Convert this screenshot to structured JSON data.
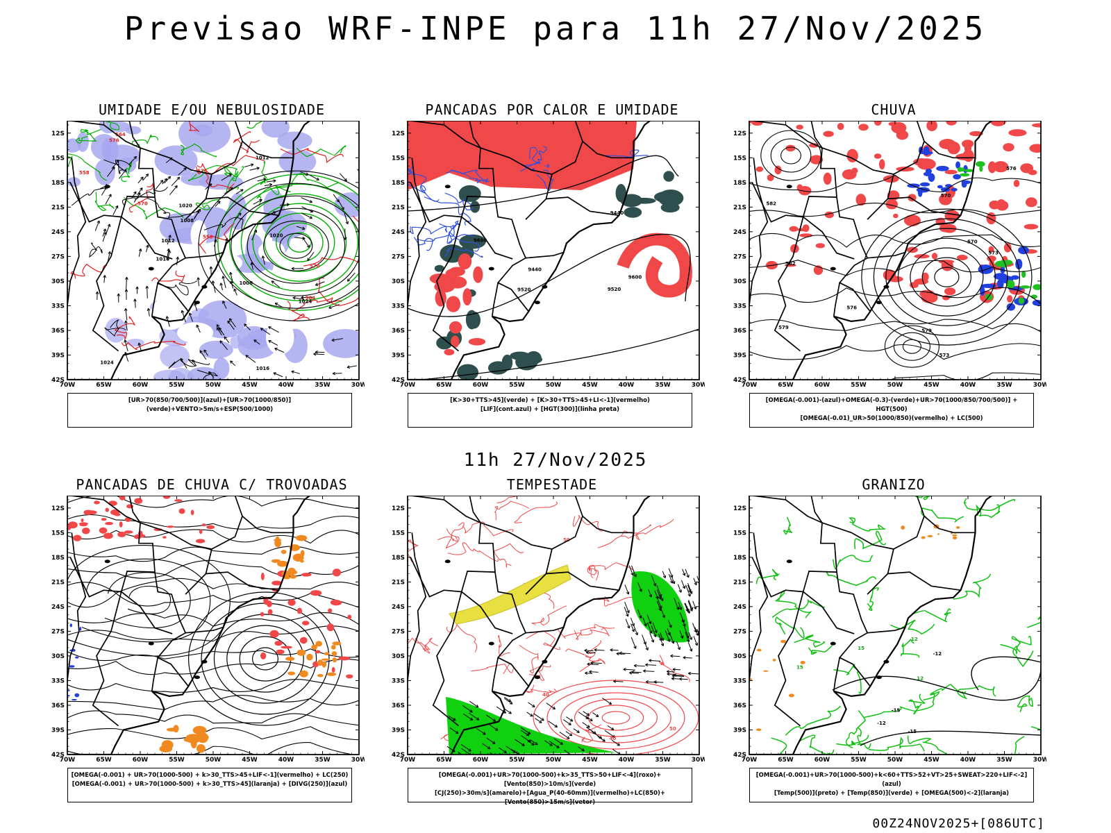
{
  "header": {
    "title": "Previsao WRF-INPE  para 11h 27/Nov/2025"
  },
  "middle": {
    "subtitle": "11h 27/Nov/2025"
  },
  "footer": {
    "run": "00Z24NOV2025+[086UTC]"
  },
  "axes": {
    "lat_labels": [
      "12S",
      "15S",
      "18S",
      "21S",
      "24S",
      "27S",
      "30S",
      "33S",
      "36S",
      "39S",
      "42S"
    ],
    "lon_labels": [
      "70W",
      "65W",
      "60W",
      "55W",
      "50W",
      "45W",
      "40W",
      "35W",
      "30W"
    ]
  },
  "panels": [
    {
      "title": "UMIDADE E/OU NEBULOSIDADE",
      "legend": [
        "[UR>70(850/700/500)](azul)+[UR>70(1000/850)](verde)+VENTO>5m/s+ESP(500/1000)"
      ],
      "labels": [
        "1008",
        "1012",
        "1016",
        "1020",
        "1024",
        "570",
        "576",
        "564",
        "558"
      ]
    },
    {
      "title": "PANCADAS POR CALOR E UMIDADE",
      "legend": [
        "[K>30+TTS>45](verde) + [K>30+TTS>45+LI<-1](vermelho)",
        "[LIF](cont.azul) + [HGT(300)](linha preta)"
      ],
      "labels": [
        "9600",
        "9520",
        "9440",
        "-8"
      ]
    },
    {
      "title": "CHUVA",
      "legend": [
        "[OMEGA(-0.001)-(azul)+OMEGA(-0.3)-(verde)+UR>70(1000/850/700/500)] + HGT(500)",
        "[OMEGA(-0.01)_UR>50(1000/850)(vermelho) + LC(500)"
      ],
      "labels": [
        "582",
        "579",
        "576",
        "573",
        "570"
      ]
    },
    {
      "title": "PANCADAS DE CHUVA C/ TROVOADAS",
      "legend": [
        "[OMEGA(-0.001) + UR>70(1000-500) + k>30_TTS>45+LIF<-1](vermelho) + LC(250)",
        "[OMEGA(-0.001) + UR>70(1000-500) + k>30_TTS>45](laranja) + [DIVG(250)](azul)"
      ],
      "labels": []
    },
    {
      "title": "TEMPESTADE",
      "legend": [
        "[OMEGA(-0.001)+UR>70(1000-500)+k>35_TTS>50+LIF<-4](roxo)+[Vento(850)>10m/s](verde)",
        "[CJ(250)>30m/s](amarelo)+[Agua_P(40-60mm)](vermelho)+LC(850)+[Vento(850)>15m/s](vetor)"
      ],
      "labels": [
        "50",
        "40"
      ]
    },
    {
      "title": "GRANIZO",
      "legend": [
        "[OMEGA(-0.001)+UR>70(1000-500)+k<60+TTS>52+VT>25+SWEAT>220+LIF<-2](azul)",
        "[Temp(500)](preto) + [Temp(850)](verde) + [OMEGA(500)<-2](laranja)"
      ],
      "labels": [
        "-12",
        "-15",
        "15",
        "12"
      ]
    }
  ]
}
